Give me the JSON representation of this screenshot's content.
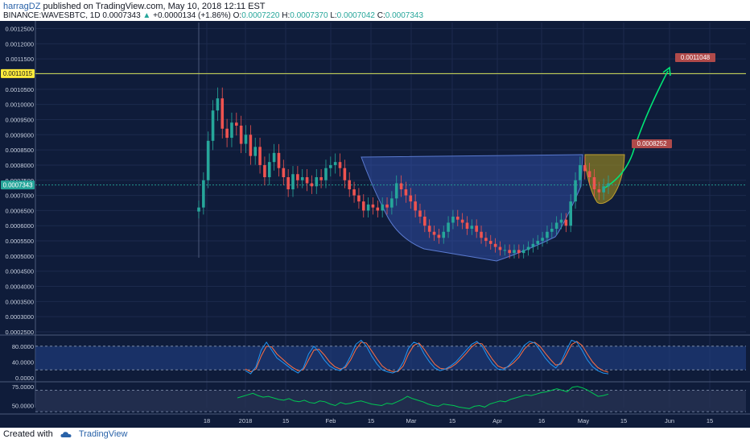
{
  "header": {
    "author": "harragDZ",
    "published_text": "published on TradingView.com, May 10, 2018 12:11 EST",
    "symbol": "BINANCE:WAVESBTC, 1D",
    "last": "0.0007343",
    "arrow": "▲",
    "change": "+0.0000134 (+1.86%)",
    "o_label": "O:",
    "o_value": "0.0007220",
    "h_label": "H:",
    "h_value": "0.0007370",
    "l_label": "L:",
    "l_value": "0.0007042",
    "c_label": "C:",
    "c_value": "0.0007343"
  },
  "footer": {
    "created_with": "Created with",
    "brand": "TradingView"
  },
  "colors": {
    "background": "#0f1c3a",
    "grid": "#1c2a4d",
    "up": "#26a69a",
    "down": "#ef5350",
    "label_yellow": "#ffeb3b",
    "target_box": "#b04a4a",
    "cup_fill": "#3557b8",
    "handle_fill": "#9a8a20",
    "arrow_green": "#00e676",
    "stoch_k": "#2196f3",
    "stoch_d": "#ff7043",
    "rsi": "#00c853"
  },
  "chart_data": {
    "type": "candlestick",
    "price_axis": {
      "ticks": [
        0.00125,
        0.0012,
        0.00115,
        0.0011,
        0.00105,
        0.001,
        0.00095,
        0.0009,
        0.00085,
        0.0008,
        0.00075,
        0.0007,
        0.00065,
        0.0006,
        0.00055,
        0.0005,
        0.00045,
        0.0004,
        0.00035,
        0.0003,
        0.00025
      ],
      "tick_labels": [
        "0.0012500",
        "0.0012000",
        "0.0011500",
        "0.0011000",
        "0.0010500",
        "0.0010000",
        "0.0009500",
        "0.0009000",
        "0.0008500",
        "0.0008000",
        "0.0007500",
        "0.0007000",
        "0.0006500",
        "0.0006000",
        "0.0005500",
        "0.0005000",
        "0.0004500",
        "0.0004000",
        "0.0003500",
        "0.0003000",
        "0.0002500"
      ],
      "range": [
        0.00025,
        0.00127
      ]
    },
    "time_axis": {
      "labels": [
        "18",
        "2018",
        "15",
        "Feb",
        "15",
        "Mar",
        "15",
        "Apr",
        "16",
        "May",
        "15",
        "Jun",
        "15"
      ]
    },
    "price_levels": {
      "horizontal_line_label": "0.0011015",
      "horizontal_line_value": 0.0011015,
      "current_label": "0.0007343",
      "current_value": 0.0007343
    },
    "targets": [
      {
        "label": "0.0011048",
        "value": 0.0011048
      },
      {
        "label": "0.0008252",
        "value": 0.0008252
      }
    ],
    "candles_close": [
      0.00066,
      0.00075,
      0.00088,
      0.00098,
      0.00102,
      0.00092,
      0.00089,
      0.00094,
      0.00093,
      0.00087,
      0.0009,
      0.00083,
      0.00086,
      0.0008,
      0.00076,
      0.00081,
      0.00084,
      0.00079,
      0.00076,
      0.00072,
      0.00077,
      0.00075,
      0.00076,
      0.00074,
      0.00073,
      0.00076,
      0.00075,
      0.00079,
      0.0008,
      0.00081,
      0.00079,
      0.00075,
      0.00072,
      0.0007,
      0.00068,
      0.00065,
      0.00067,
      0.00066,
      0.00065,
      0.00067,
      0.00066,
      0.00069,
      0.00074,
      0.00072,
      0.0007,
      0.00068,
      0.00065,
      0.00063,
      0.0006,
      0.00058,
      0.00057,
      0.00056,
      0.00058,
      0.00061,
      0.00063,
      0.00062,
      0.00061,
      0.00059,
      0.0006,
      0.00058,
      0.00056,
      0.00055,
      0.00054,
      0.00053,
      0.00052,
      0.00052,
      0.00051,
      0.00052,
      0.00051,
      0.00052,
      0.00053,
      0.00054,
      0.00055,
      0.00056,
      0.00058,
      0.00059,
      0.00061,
      0.00062,
      0.0006,
      0.00068,
      0.00075,
      0.0008,
      0.00078,
      0.00076,
      0.00072,
      0.00071,
      0.00073,
      0.00074
    ],
    "stoch": {
      "axis_labels": [
        "80.0000",
        "40.0000",
        "0.0000"
      ],
      "ticks": [
        80,
        40,
        0
      ],
      "k": [
        18,
        10,
        28,
        70,
        90,
        70,
        50,
        40,
        30,
        20,
        12,
        25,
        60,
        80,
        65,
        45,
        30,
        22,
        18,
        30,
        55,
        85,
        95,
        80,
        55,
        35,
        20,
        15,
        12,
        18,
        40,
        75,
        90,
        85,
        60,
        40,
        25,
        18,
        22,
        30,
        40,
        55,
        70,
        85,
        92,
        80,
        55,
        35,
        22,
        20,
        30,
        45,
        60,
        82,
        92,
        88,
        70,
        50,
        35,
        25,
        40,
        70,
        95,
        90,
        70,
        45,
        28,
        18,
        12,
        10
      ],
      "d": [
        22,
        15,
        22,
        55,
        80,
        78,
        60,
        48,
        36,
        26,
        18,
        20,
        45,
        70,
        72,
        58,
        40,
        28,
        22,
        26,
        45,
        72,
        90,
        88,
        68,
        48,
        30,
        20,
        16,
        16,
        30,
        60,
        82,
        88,
        72,
        52,
        34,
        24,
        22,
        26,
        35,
        48,
        62,
        78,
        88,
        86,
        66,
        46,
        30,
        24,
        28,
        38,
        52,
        72,
        86,
        90,
        80,
        62,
        46,
        32,
        35,
        58,
        84,
        92,
        82,
        60,
        40,
        26,
        18,
        14
      ]
    },
    "rsi": {
      "axis_labels": [
        "75.0000",
        "50.0000"
      ],
      "ticks": [
        75,
        50
      ],
      "values": [
        60,
        62,
        64,
        66,
        63,
        61,
        62,
        60,
        58,
        57,
        59,
        56,
        55,
        57,
        54,
        53,
        56,
        55,
        52,
        50,
        54,
        52,
        53,
        55,
        56,
        54,
        52,
        51,
        50,
        53,
        52,
        55,
        58,
        62,
        59,
        57,
        55,
        52,
        50,
        49,
        52,
        51,
        50,
        48,
        47,
        46,
        49,
        50,
        48,
        52,
        54,
        56,
        55,
        58,
        60,
        62,
        64,
        63,
        65,
        67,
        68,
        70,
        72,
        70,
        68,
        74,
        75,
        73,
        70,
        66,
        62,
        63,
        65
      ]
    }
  }
}
